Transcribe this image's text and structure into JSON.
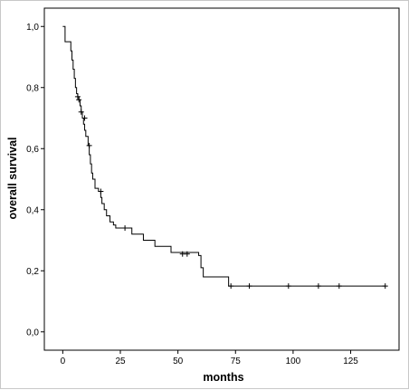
{
  "chart_data": {
    "type": "line",
    "subtype": "kaplan-meier-step",
    "title": "",
    "xlabel": "months",
    "ylabel": "overall survival",
    "xlim": [
      -8,
      146
    ],
    "ylim": [
      -0.06,
      1.06
    ],
    "xticks": [
      0,
      25,
      50,
      75,
      100,
      125
    ],
    "yticks": [
      0.0,
      0.2,
      0.4,
      0.6,
      0.8,
      1.0
    ],
    "xtick_labels": [
      "0",
      "25",
      "50",
      "75",
      "100",
      "125"
    ],
    "ytick_labels": [
      "0,0",
      "0,2",
      "0,4",
      "0,6",
      "0,8",
      "1,0"
    ],
    "grid": false,
    "legend": "none",
    "line_color": "#000000",
    "censor_marker": "+",
    "series": [
      {
        "steps": [
          [
            0,
            1.0
          ],
          [
            1,
            0.95
          ],
          [
            3,
            0.95
          ],
          [
            3.5,
            0.92
          ],
          [
            4,
            0.89
          ],
          [
            4.5,
            0.86
          ],
          [
            5,
            0.83
          ],
          [
            5.5,
            0.8
          ],
          [
            6,
            0.78
          ],
          [
            6.5,
            0.77
          ],
          [
            7,
            0.76
          ],
          [
            7.5,
            0.74
          ],
          [
            8,
            0.72
          ],
          [
            8.5,
            0.7
          ],
          [
            9,
            0.68
          ],
          [
            9.5,
            0.66
          ],
          [
            10,
            0.64
          ],
          [
            11,
            0.61
          ],
          [
            11.5,
            0.58
          ],
          [
            12,
            0.55
          ],
          [
            12.5,
            0.52
          ],
          [
            13,
            0.5
          ],
          [
            14,
            0.47
          ],
          [
            15.5,
            0.46
          ],
          [
            16.5,
            0.44
          ],
          [
            17,
            0.42
          ],
          [
            18,
            0.4
          ],
          [
            19,
            0.38
          ],
          [
            20.5,
            0.36
          ],
          [
            22,
            0.35
          ],
          [
            23,
            0.34
          ],
          [
            30,
            0.32
          ],
          [
            35,
            0.3
          ],
          [
            40,
            0.28
          ],
          [
            47,
            0.26
          ],
          [
            59,
            0.25
          ],
          [
            60,
            0.21
          ],
          [
            61,
            0.18
          ],
          [
            72,
            0.15
          ],
          [
            140,
            0.15
          ]
        ],
        "censored": [
          [
            6.5,
            0.77
          ],
          [
            7,
            0.76
          ],
          [
            8,
            0.72
          ],
          [
            9.5,
            0.7
          ],
          [
            11.5,
            0.61
          ],
          [
            16.5,
            0.46
          ],
          [
            27,
            0.34
          ],
          [
            52,
            0.255
          ],
          [
            54,
            0.255
          ],
          [
            73,
            0.15
          ],
          [
            81,
            0.15
          ],
          [
            98,
            0.15
          ],
          [
            111,
            0.15
          ],
          [
            120,
            0.15
          ],
          [
            140,
            0.15
          ]
        ]
      }
    ]
  }
}
